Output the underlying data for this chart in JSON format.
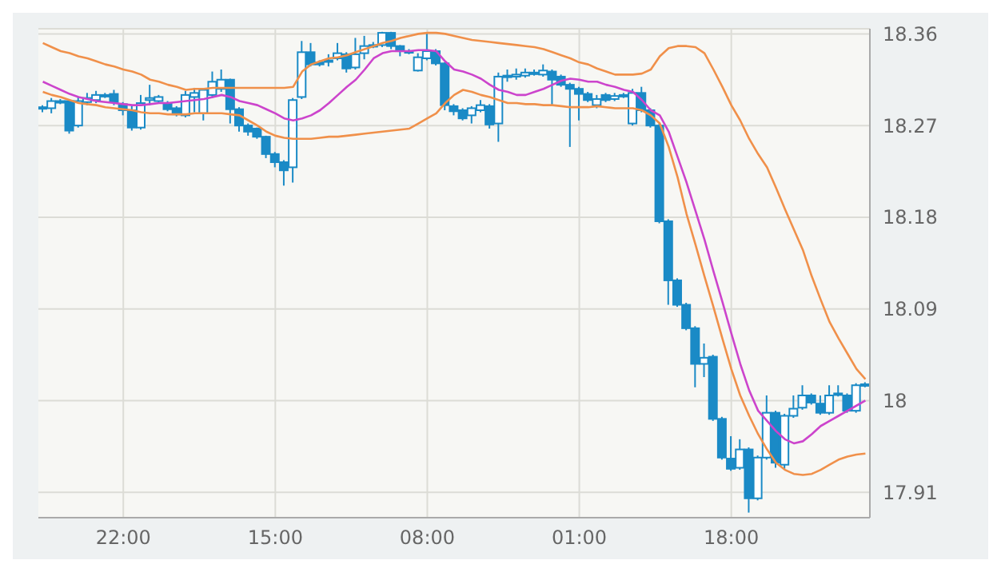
{
  "chart_data": {
    "type": "candlestick",
    "color": "#1a8ac6",
    "categories": [
      null,
      null,
      null,
      null,
      null,
      null,
      null,
      null,
      null,
      "22:00",
      null,
      null,
      null,
      null,
      null,
      null,
      null,
      null,
      null,
      null,
      null,
      null,
      null,
      null,
      null,
      null,
      "15:00",
      null,
      null,
      null,
      null,
      null,
      null,
      null,
      null,
      null,
      null,
      null,
      null,
      null,
      null,
      null,
      null,
      "08:00",
      null,
      null,
      null,
      null,
      null,
      null,
      null,
      null,
      null,
      null,
      null,
      null,
      null,
      null,
      null,
      null,
      "01:00",
      null,
      null,
      null,
      null,
      null,
      null,
      null,
      null,
      null,
      null,
      null,
      null,
      null,
      null,
      null,
      null,
      "18:00",
      null,
      null,
      null,
      null,
      null,
      null,
      null,
      null,
      null,
      null,
      null,
      null,
      null,
      null,
      null
    ],
    "ohlc": [
      [
        18.287,
        18.29,
        18.283,
        18.288
      ],
      [
        18.287,
        18.297,
        18.282,
        18.294
      ],
      [
        18.293,
        18.296,
        18.291,
        18.294
      ],
      [
        18.294,
        18.296,
        18.262,
        18.265
      ],
      [
        18.27,
        18.298,
        18.268,
        18.294
      ],
      [
        18.293,
        18.302,
        18.29,
        18.297
      ],
      [
        18.295,
        18.304,
        18.292,
        18.3
      ],
      [
        18.299,
        18.302,
        18.297,
        18.3
      ],
      [
        18.301,
        18.305,
        18.29,
        18.293
      ],
      [
        18.291,
        18.293,
        18.28,
        18.285
      ],
      [
        18.285,
        18.29,
        18.265,
        18.268
      ],
      [
        18.268,
        18.3,
        18.266,
        18.292
      ],
      [
        18.295,
        18.31,
        18.29,
        18.297
      ],
      [
        18.294,
        18.3,
        18.292,
        18.298
      ],
      [
        18.292,
        18.294,
        18.284,
        18.286
      ],
      [
        18.287,
        18.289,
        18.279,
        18.281
      ],
      [
        18.28,
        18.304,
        18.278,
        18.3
      ],
      [
        18.298,
        18.307,
        18.283,
        18.302
      ],
      [
        18.282,
        18.306,
        18.275,
        18.305
      ],
      [
        18.3,
        18.323,
        18.297,
        18.313
      ],
      [
        18.306,
        18.325,
        18.303,
        18.315
      ],
      [
        18.315,
        18.316,
        18.272,
        18.286
      ],
      [
        18.286,
        18.288,
        18.264,
        18.27
      ],
      [
        18.27,
        18.272,
        18.26,
        18.264
      ],
      [
        18.267,
        18.268,
        18.257,
        18.259
      ],
      [
        18.259,
        18.26,
        18.238,
        18.242
      ],
      [
        18.242,
        18.244,
        18.229,
        18.234
      ],
      [
        18.234,
        18.236,
        18.211,
        18.226
      ],
      [
        18.229,
        18.297,
        18.214,
        18.295
      ],
      [
        18.298,
        18.353,
        18.296,
        18.342
      ],
      [
        18.342,
        18.351,
        18.328,
        18.33
      ],
      [
        18.332,
        18.334,
        18.328,
        18.33
      ],
      [
        18.333,
        18.34,
        18.328,
        18.334
      ],
      [
        18.336,
        18.351,
        18.334,
        18.341
      ],
      [
        18.34,
        18.342,
        18.322,
        18.326
      ],
      [
        18.327,
        18.356,
        18.325,
        18.34
      ],
      [
        18.341,
        18.358,
        18.335,
        18.348
      ],
      [
        18.348,
        18.352,
        18.346,
        18.349
      ],
      [
        18.349,
        18.362,
        18.347,
        18.361
      ],
      [
        18.361,
        18.362,
        18.345,
        18.348
      ],
      [
        18.348,
        18.349,
        18.338,
        18.343
      ],
      [
        18.343,
        18.345,
        18.34,
        18.342
      ],
      [
        18.324,
        18.341,
        18.323,
        18.337
      ],
      [
        18.336,
        18.361,
        18.334,
        18.343
      ],
      [
        18.343,
        18.345,
        18.329,
        18.331
      ],
      [
        18.331,
        18.332,
        18.285,
        18.29
      ],
      [
        18.289,
        18.291,
        18.28,
        18.284
      ],
      [
        18.285,
        18.287,
        18.275,
        18.277
      ],
      [
        18.28,
        18.289,
        18.272,
        18.287
      ],
      [
        18.285,
        18.295,
        18.283,
        18.29
      ],
      [
        18.289,
        18.291,
        18.267,
        18.271
      ],
      [
        18.272,
        18.322,
        18.254,
        18.318
      ],
      [
        18.318,
        18.325,
        18.313,
        18.319
      ],
      [
        18.318,
        18.326,
        18.315,
        18.32
      ],
      [
        18.319,
        18.326,
        18.317,
        18.322
      ],
      [
        18.322,
        18.325,
        18.319,
        18.321
      ],
      [
        18.32,
        18.33,
        18.318,
        18.324
      ],
      [
        18.323,
        18.325,
        18.29,
        18.315
      ],
      [
        18.318,
        18.32,
        18.308,
        18.31
      ],
      [
        18.31,
        18.312,
        18.249,
        18.306
      ],
      [
        18.306,
        18.308,
        18.275,
        18.301
      ],
      [
        18.301,
        18.303,
        18.293,
        18.295
      ],
      [
        18.29,
        18.3,
        18.287,
        18.296
      ],
      [
        18.3,
        18.302,
        18.293,
        18.295
      ],
      [
        18.296,
        18.302,
        18.294,
        18.299
      ],
      [
        18.299,
        18.302,
        18.297,
        18.3
      ],
      [
        18.272,
        18.306,
        18.27,
        18.302
      ],
      [
        18.302,
        18.308,
        18.283,
        18.285
      ],
      [
        18.285,
        18.287,
        18.268,
        18.27
      ],
      [
        18.27,
        18.272,
        18.174,
        18.176
      ],
      [
        18.176,
        18.178,
        18.094,
        18.118
      ],
      [
        18.118,
        18.12,
        18.092,
        18.094
      ],
      [
        18.094,
        18.096,
        18.069,
        18.071
      ],
      [
        18.071,
        18.073,
        18.013,
        18.036
      ],
      [
        18.036,
        18.056,
        18.023,
        18.042
      ],
      [
        18.043,
        18.045,
        17.98,
        17.982
      ],
      [
        17.982,
        17.984,
        17.942,
        17.944
      ],
      [
        17.943,
        17.965,
        17.931,
        17.933
      ],
      [
        17.934,
        17.962,
        17.932,
        17.952
      ],
      [
        17.952,
        17.954,
        17.89,
        17.904
      ],
      [
        17.904,
        17.946,
        17.902,
        17.944
      ],
      [
        17.944,
        18.005,
        17.942,
        17.988
      ],
      [
        17.988,
        17.99,
        17.934,
        17.939
      ],
      [
        17.937,
        17.987,
        17.933,
        17.985
      ],
      [
        17.985,
        18.005,
        17.983,
        17.992
      ],
      [
        17.993,
        18.015,
        17.991,
        18.005
      ],
      [
        18.005,
        18.007,
        17.996,
        17.998
      ],
      [
        17.997,
        18.005,
        17.986,
        17.988
      ],
      [
        17.988,
        18.015,
        17.986,
        18.005
      ],
      [
        18.006,
        18.015,
        18.004,
        18.007
      ],
      [
        18.005,
        18.007,
        17.988,
        17.99
      ],
      [
        17.99,
        18.017,
        17.988,
        18.015
      ],
      [
        18.016,
        18.018,
        18.013,
        18.015
      ]
    ],
    "series": [
      {
        "type": "line",
        "color": "#f0904a",
        "values": [
          18.351,
          18.347,
          18.343,
          18.341,
          18.338,
          18.336,
          18.333,
          18.33,
          18.328,
          18.325,
          18.323,
          18.32,
          18.315,
          18.313,
          18.31,
          18.308,
          18.305,
          18.306,
          18.306,
          18.307,
          18.307,
          18.307,
          18.307,
          18.307,
          18.307,
          18.307,
          18.307,
          18.307,
          18.308,
          18.323,
          18.33,
          18.333,
          18.336,
          18.337,
          18.339,
          18.342,
          18.345,
          18.348,
          18.351,
          18.353,
          18.356,
          18.358,
          18.36,
          18.361,
          18.361,
          18.36,
          18.358,
          18.356,
          18.354,
          18.353,
          18.352,
          18.351,
          18.35,
          18.349,
          18.348,
          18.347,
          18.345,
          18.342,
          18.339,
          18.336,
          18.332,
          18.33,
          18.326,
          18.323,
          18.32,
          18.32,
          18.32,
          18.321,
          18.325,
          18.338,
          18.346,
          18.348,
          18.348,
          18.347,
          18.341,
          18.325,
          18.308,
          18.29,
          18.275,
          18.257,
          18.242,
          18.229,
          18.209,
          18.188,
          18.168,
          18.148,
          18.122,
          18.099,
          18.077,
          18.061,
          18.046,
          18.031,
          18.021
        ]
      },
      {
        "type": "line",
        "color": "#cc44cc",
        "values": [
          18.313,
          18.309,
          18.305,
          18.301,
          18.298,
          18.296,
          18.294,
          18.293,
          18.292,
          18.291,
          18.29,
          18.29,
          18.291,
          18.292,
          18.292,
          18.293,
          18.294,
          18.295,
          18.296,
          18.298,
          18.3,
          18.298,
          18.294,
          18.292,
          18.29,
          18.286,
          18.282,
          18.277,
          18.275,
          18.277,
          18.28,
          18.285,
          18.292,
          18.3,
          18.308,
          18.315,
          18.325,
          18.336,
          18.341,
          18.343,
          18.343,
          18.343,
          18.344,
          18.344,
          18.343,
          18.333,
          18.325,
          18.323,
          18.32,
          18.316,
          18.31,
          18.305,
          18.303,
          18.3,
          18.3,
          18.303,
          18.306,
          18.31,
          18.314,
          18.316,
          18.315,
          18.313,
          18.313,
          18.31,
          18.308,
          18.305,
          18.303,
          18.295,
          18.285,
          18.28,
          18.264,
          18.239,
          18.214,
          18.186,
          18.158,
          18.127,
          18.097,
          18.066,
          18.036,
          18.01,
          17.99,
          17.98,
          17.97,
          17.962,
          17.958,
          17.96,
          17.967,
          17.975,
          17.98,
          17.985,
          17.99,
          17.995,
          18.0
        ]
      },
      {
        "type": "line",
        "color": "#f0904a",
        "values": [
          18.303,
          18.3,
          18.298,
          18.295,
          18.292,
          18.291,
          18.29,
          18.288,
          18.287,
          18.286,
          18.285,
          18.283,
          18.282,
          18.282,
          18.281,
          18.281,
          18.281,
          18.282,
          18.282,
          18.282,
          18.282,
          18.281,
          18.28,
          18.275,
          18.27,
          18.264,
          18.26,
          18.258,
          18.257,
          18.257,
          18.257,
          18.258,
          18.259,
          18.259,
          18.26,
          18.261,
          18.262,
          18.263,
          18.264,
          18.265,
          18.266,
          18.267,
          18.272,
          18.277,
          18.282,
          18.292,
          18.3,
          18.305,
          18.303,
          18.3,
          18.298,
          18.295,
          18.292,
          18.292,
          18.291,
          18.291,
          18.29,
          18.29,
          18.289,
          18.288,
          18.288,
          18.288,
          18.289,
          18.288,
          18.287,
          18.287,
          18.287,
          18.285,
          18.28,
          18.272,
          18.249,
          18.219,
          18.183,
          18.153,
          18.122,
          18.092,
          18.061,
          18.031,
          18.005,
          17.985,
          17.967,
          17.952,
          17.939,
          17.932,
          17.928,
          17.927,
          17.928,
          17.932,
          17.937,
          17.942,
          17.945,
          17.947,
          17.948
        ]
      }
    ],
    "ylim": [
      17.885,
      18.365
    ],
    "yticks": [
      17.91,
      18,
      18.09,
      18.18,
      18.27,
      18.36
    ],
    "grid": true
  }
}
